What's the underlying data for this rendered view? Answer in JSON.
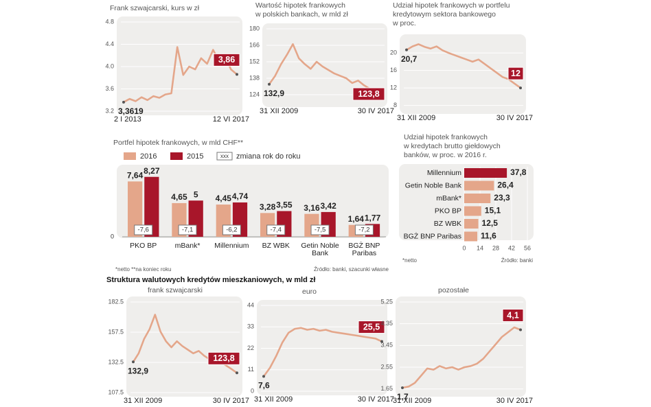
{
  "section_title": "Struktura walutowych kredytów mieszkaniowych, w mld zł",
  "chart_data": [
    {
      "type": "line",
      "title": [
        "Frank szwajcarski, kurs w zł"
      ],
      "color": "#e4a68a",
      "categories": [
        "2 I 2013",
        null,
        null,
        null,
        null,
        null,
        null,
        null,
        null,
        null,
        null,
        null,
        null,
        null,
        null,
        null,
        null,
        null,
        null,
        "12 VI 2017"
      ],
      "values": [
        3.3619,
        3.42,
        3.38,
        3.45,
        3.4,
        3.47,
        3.44,
        3.5,
        3.52,
        4.35,
        3.85,
        4.0,
        3.95,
        4.15,
        4.05,
        4.3,
        4.1,
        4.2,
        3.95,
        3.86
      ],
      "value_labels": [
        "3,3619",
        null,
        null,
        null,
        null,
        null,
        null,
        null,
        null,
        null,
        null,
        null,
        null,
        null,
        null,
        null,
        null,
        null,
        null,
        "3,86"
      ],
      "ylim": [
        3.2,
        4.8
      ],
      "yticks": [
        3.2,
        3.6,
        {
          "value": 4,
          "label": "4.0"
        },
        4.4,
        4.8
      ]
    },
    {
      "type": "line",
      "title": [
        "Wartość hipotek frankowych",
        "w polskich bankach, w mld zł"
      ],
      "color": "#e4a68a",
      "categories": [
        "31 XII 2009",
        null,
        null,
        null,
        null,
        null,
        null,
        null,
        null,
        null,
        null,
        null,
        null,
        null,
        null,
        null,
        null,
        null,
        null,
        "30 IV 2017"
      ],
      "values": [
        132.9,
        140,
        150,
        158,
        167,
        155,
        150,
        146,
        152,
        148,
        145,
        142,
        140,
        138,
        134,
        136,
        132,
        129,
        127,
        123.8
      ],
      "value_labels": [
        "132,9",
        null,
        null,
        null,
        null,
        null,
        null,
        null,
        null,
        null,
        null,
        null,
        null,
        null,
        null,
        null,
        null,
        null,
        null,
        "123,8"
      ],
      "ylim": [
        117,
        180
      ],
      "yticks": [
        124,
        138,
        152,
        166,
        180
      ]
    },
    {
      "type": "line",
      "title": [
        "Udział hipotek frankowych w portfelu",
        "kredytowym sektora bankowego",
        "w proc."
      ],
      "color": "#e4a68a",
      "categories": [
        "31 XII 2009",
        null,
        null,
        null,
        null,
        null,
        null,
        null,
        null,
        null,
        null,
        null,
        null,
        null,
        null,
        null,
        null,
        null,
        null,
        "30 IV 2017"
      ],
      "values": [
        20.7,
        21.5,
        22,
        21.4,
        21,
        21.5,
        20.6,
        20,
        19.5,
        19,
        18.5,
        18,
        18.5,
        17.5,
        16.5,
        15.5,
        14.5,
        14,
        13,
        12
      ],
      "value_labels": [
        "20,7",
        null,
        null,
        null,
        null,
        null,
        null,
        null,
        null,
        null,
        null,
        null,
        null,
        null,
        null,
        null,
        null,
        null,
        null,
        "12"
      ],
      "ylim": [
        7,
        23
      ],
      "yticks": [
        8,
        12,
        16,
        20
      ]
    },
    {
      "type": "grouped-bar",
      "title": [
        "Portfel hipotek frankowych, w mld CHF**"
      ],
      "categories": [
        "PKO BP",
        "mBank*",
        "Millennium",
        "BZ WBK",
        "Getin Noble Bank",
        "BGŻ BNP Paribas"
      ],
      "series": [
        {
          "name": "2016",
          "color": "#e4a68a",
          "values": [
            7.64,
            4.65,
            4.45,
            3.28,
            3.16,
            1.64
          ],
          "value_labels": [
            "7,64",
            "4,65",
            "4,45",
            "3,28",
            "3,16",
            "1,64"
          ]
        },
        {
          "name": "2015",
          "color": "#a8162a",
          "values": [
            8.27,
            5,
            4.74,
            3.55,
            3.42,
            1.77
          ],
          "value_labels": [
            "8,27",
            "5",
            "4,74",
            "3,55",
            "3,42",
            "1,77"
          ]
        }
      ],
      "changes": [
        -7.6,
        -7.1,
        -6.2,
        -7.4,
        -7.5,
        -7.2
      ],
      "change_labels": [
        "-7,6",
        "-7,1",
        "-6,2",
        "-7,4",
        "-7,5",
        "-7,2"
      ],
      "change_legend_box": "xxx",
      "change_legend": "zmiana rok do roku",
      "ylim": [
        0,
        9
      ],
      "yticks": [
        0
      ],
      "footnote": "*netto **na koniec roku",
      "source": "Źródło: banki, szacunki własne"
    },
    {
      "type": "hbar",
      "title": [
        "Udział hipotek frankowych",
        "w kredytach brutto giełdowych",
        "banków, w proc. w 2016 r."
      ],
      "color": "#e4a68a",
      "highlight_color": "#a8162a",
      "categories": [
        "Millennium",
        "Getin Noble Bank",
        "mBank*",
        "PKO BP",
        "BZ WBK",
        "BGŻ BNP Paribas"
      ],
      "values": [
        37.8,
        26.4,
        23.3,
        15.1,
        12.5,
        11.6
      ],
      "value_labels": [
        "37,8",
        "26,4",
        "23,3",
        "15,1",
        "12,5",
        "11,6"
      ],
      "xlim": [
        0,
        56
      ],
      "xticks": [
        0,
        14,
        28,
        42,
        56
      ],
      "footnote": "*netto",
      "source": "Źródło: banki"
    },
    {
      "type": "line",
      "title": [
        "frank szwajcarski"
      ],
      "color": "#e4a68a",
      "categories": [
        "31 XII 2009",
        null,
        null,
        null,
        null,
        null,
        null,
        null,
        null,
        null,
        null,
        null,
        null,
        null,
        null,
        null,
        null,
        null,
        null,
        "30 IV 2017"
      ],
      "values": [
        132.9,
        140,
        152,
        160,
        172,
        158,
        150,
        145,
        150,
        146,
        143,
        140,
        142,
        138,
        135,
        137,
        133,
        130,
        127,
        123.8
      ],
      "value_labels": [
        "132,9",
        null,
        null,
        null,
        null,
        null,
        null,
        null,
        null,
        null,
        null,
        null,
        null,
        null,
        null,
        null,
        null,
        null,
        null,
        "123,8"
      ],
      "ylim": [
        107.5,
        182.5
      ],
      "yticks": [
        107.5,
        132.5,
        157.5,
        182.5
      ]
    },
    {
      "type": "line",
      "title": [
        "euro"
      ],
      "color": "#e4a68a",
      "categories": [
        "31 XII 2009",
        null,
        null,
        null,
        null,
        null,
        null,
        null,
        null,
        null,
        null,
        null,
        null,
        null,
        null,
        null,
        null,
        null,
        null,
        "30 IV 2017"
      ],
      "values": [
        7.6,
        12,
        18,
        25,
        30,
        32,
        32.5,
        31.5,
        32,
        31,
        31.5,
        30.5,
        30,
        29.5,
        29,
        28.5,
        28,
        27.5,
        27,
        25.5
      ],
      "value_labels": [
        "7,6",
        null,
        null,
        null,
        null,
        null,
        null,
        null,
        null,
        null,
        null,
        null,
        null,
        null,
        null,
        null,
        null,
        null,
        null,
        "25,5"
      ],
      "ylim": [
        0,
        44
      ],
      "yticks": [
        0,
        11,
        22,
        33,
        44
      ]
    },
    {
      "type": "line",
      "title": [
        "pozostałe"
      ],
      "color": "#e4a68a",
      "categories": [
        "31 XII 2009",
        null,
        null,
        null,
        null,
        null,
        null,
        null,
        null,
        null,
        null,
        null,
        null,
        null,
        null,
        null,
        null,
        null,
        null,
        "30 IV 2017"
      ],
      "values": [
        1.7,
        1.75,
        1.9,
        2.2,
        2.5,
        2.45,
        2.6,
        2.5,
        2.55,
        2.45,
        2.55,
        2.6,
        2.7,
        2.9,
        3.2,
        3.5,
        3.8,
        4.0,
        4.2,
        4.1
      ],
      "value_labels": [
        "1,7",
        null,
        null,
        null,
        null,
        null,
        null,
        null,
        null,
        null,
        null,
        null,
        null,
        null,
        null,
        null,
        null,
        null,
        null,
        "4,1"
      ],
      "ylim": [
        1.5,
        5.25
      ],
      "yticks": [
        1.65,
        2.55,
        3.45,
        4.35,
        5.25
      ]
    }
  ]
}
